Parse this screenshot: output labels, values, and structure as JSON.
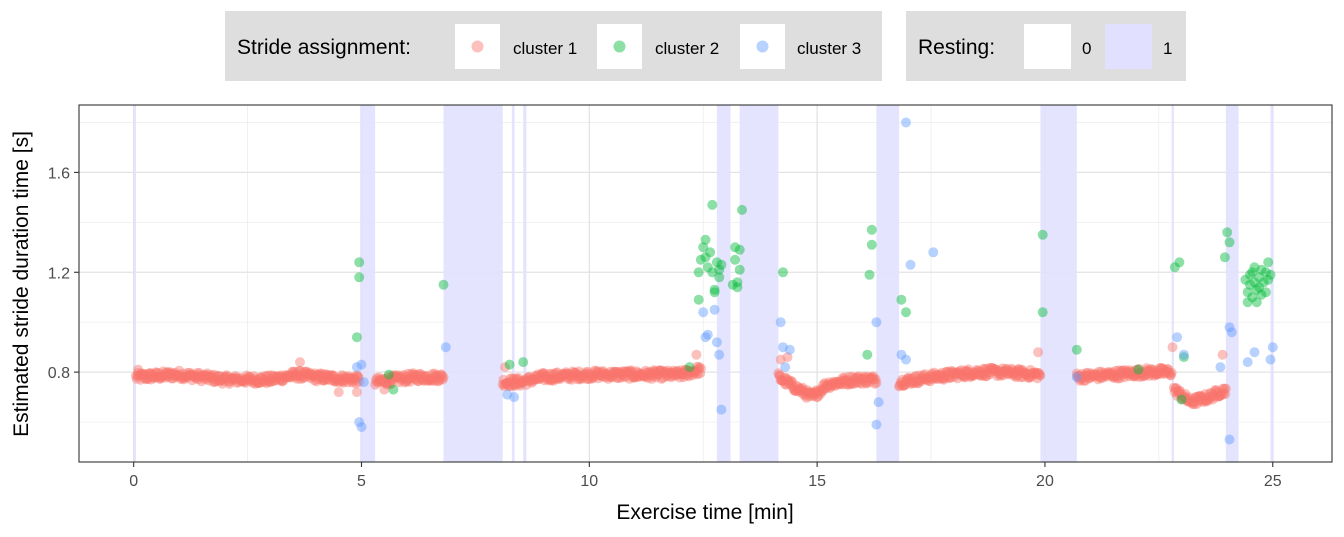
{
  "chart_data": {
    "type": "scatter",
    "xlabel": "Exercise time [min]",
    "ylabel": "Estimated stride duration time [s]",
    "xlim": [
      -1.2,
      26.3
    ],
    "ylim": [
      0.44,
      1.87
    ],
    "x_ticks": [
      0,
      5,
      10,
      15,
      20,
      25
    ],
    "y_ticks": [
      0.8,
      1.2,
      1.6
    ],
    "grid": true,
    "legends": [
      {
        "title": "Stride assignment:",
        "entries": [
          {
            "label": "cluster 1",
            "color": "#f8766d"
          },
          {
            "label": "cluster 2",
            "color": "#00ba38"
          },
          {
            "label": "cluster 3",
            "color": "#619cff"
          }
        ]
      },
      {
        "title": "Resting:",
        "entries": [
          {
            "label": "0",
            "color": "#ffffff"
          },
          {
            "label": "1",
            "color": "#e1e1ff"
          }
        ]
      }
    ],
    "resting_intervals": [
      [
        0.0,
        0.05
      ],
      [
        4.97,
        5.3
      ],
      [
        6.8,
        8.1
      ],
      [
        8.3,
        8.36
      ],
      [
        8.55,
        8.62
      ],
      [
        12.8,
        13.1
      ],
      [
        13.3,
        14.15
      ],
      [
        16.3,
        16.8
      ],
      [
        19.9,
        20.7
      ],
      [
        22.78,
        22.83
      ],
      [
        23.97,
        24.25
      ],
      [
        24.95,
        25.02
      ]
    ],
    "series": [
      {
        "name": "cluster 1",
        "color": "#f8766d",
        "segments": [
          {
            "x0": 0.05,
            "x1": 4.95,
            "base": [
              [
                0.05,
                0.78
              ],
              [
                1.0,
                0.79
              ],
              [
                2.0,
                0.77
              ],
              [
                3.0,
                0.77
              ],
              [
                3.6,
                0.79
              ],
              [
                4.0,
                0.78
              ],
              [
                4.95,
                0.77
              ]
            ]
          },
          {
            "x0": 5.3,
            "x1": 6.8,
            "base": [
              [
                5.3,
                0.76
              ],
              [
                5.7,
                0.77
              ],
              [
                6.2,
                0.78
              ],
              [
                6.8,
                0.78
              ]
            ]
          },
          {
            "x0": 8.1,
            "x1": 12.45,
            "base": [
              [
                8.1,
                0.76
              ],
              [
                8.5,
                0.76
              ],
              [
                9.0,
                0.78
              ],
              [
                10.0,
                0.79
              ],
              [
                11.0,
                0.79
              ],
              [
                12.0,
                0.79
              ],
              [
                12.45,
                0.81
              ]
            ]
          },
          {
            "x0": 14.15,
            "x1": 16.3,
            "base": [
              [
                14.15,
                0.78
              ],
              [
                14.6,
                0.73
              ],
              [
                14.9,
                0.7
              ],
              [
                15.2,
                0.75
              ],
              [
                15.8,
                0.77
              ],
              [
                16.3,
                0.77
              ]
            ]
          },
          {
            "x0": 16.8,
            "x1": 19.9,
            "base": [
              [
                16.8,
                0.76
              ],
              [
                17.5,
                0.78
              ],
              [
                18.5,
                0.8
              ],
              [
                19.0,
                0.8
              ],
              [
                19.9,
                0.79
              ]
            ]
          },
          {
            "x0": 20.7,
            "x1": 22.78,
            "base": [
              [
                20.7,
                0.78
              ],
              [
                21.5,
                0.79
              ],
              [
                22.2,
                0.8
              ],
              [
                22.78,
                0.8
              ]
            ]
          },
          {
            "x0": 22.83,
            "x1": 23.97,
            "base": [
              [
                22.83,
                0.73
              ],
              [
                23.2,
                0.68
              ],
              [
                23.6,
                0.7
              ],
              [
                23.97,
                0.73
              ]
            ]
          }
        ],
        "outliers": [
          [
            0.1,
            0.81
          ],
          [
            3.65,
            0.84
          ],
          [
            4.5,
            0.72
          ],
          [
            4.9,
            0.72
          ],
          [
            5.5,
            0.73
          ],
          [
            8.15,
            0.82
          ],
          [
            12.35,
            0.87
          ],
          [
            14.2,
            0.85
          ],
          [
            14.35,
            0.86
          ],
          [
            19.85,
            0.88
          ],
          [
            22.8,
            0.9
          ],
          [
            23.9,
            0.87
          ]
        ]
      },
      {
        "name": "cluster 2",
        "color": "#00ba38",
        "points": [
          [
            4.9,
            0.94
          ],
          [
            4.95,
            1.24
          ],
          [
            4.95,
            1.18
          ],
          [
            5.6,
            0.79
          ],
          [
            5.7,
            0.73
          ],
          [
            6.8,
            1.15
          ],
          [
            8.25,
            0.83
          ],
          [
            8.55,
            0.84
          ],
          [
            12.2,
            0.82
          ],
          [
            12.4,
            1.09
          ],
          [
            12.45,
            1.25
          ],
          [
            12.5,
            1.3
          ],
          [
            12.55,
            1.33
          ],
          [
            12.6,
            1.22
          ],
          [
            12.65,
            1.28
          ],
          [
            12.7,
            1.47
          ],
          [
            12.7,
            1.2
          ],
          [
            12.75,
            1.12
          ],
          [
            12.75,
            1.13
          ],
          [
            12.8,
            1.24
          ],
          [
            12.85,
            1.18
          ],
          [
            12.85,
            1.21
          ],
          [
            12.9,
            1.23
          ],
          [
            12.4,
            1.2
          ],
          [
            12.55,
            1.26
          ],
          [
            13.15,
            1.15
          ],
          [
            13.2,
            1.3
          ],
          [
            13.2,
            1.25
          ],
          [
            13.25,
            1.16
          ],
          [
            13.25,
            1.14
          ],
          [
            13.3,
            1.21
          ],
          [
            13.3,
            1.29
          ],
          [
            13.35,
            1.45
          ],
          [
            14.25,
            1.2
          ],
          [
            16.1,
            0.87
          ],
          [
            16.15,
            1.19
          ],
          [
            16.2,
            1.37
          ],
          [
            16.2,
            1.31
          ],
          [
            16.85,
            1.09
          ],
          [
            16.95,
            1.04
          ],
          [
            19.95,
            1.35
          ],
          [
            19.95,
            1.04
          ],
          [
            20.7,
            0.89
          ],
          [
            22.05,
            0.81
          ],
          [
            22.85,
            1.22
          ],
          [
            22.95,
            1.24
          ],
          [
            23.0,
            0.69
          ],
          [
            23.05,
            0.86
          ],
          [
            23.95,
            1.26
          ],
          [
            24.0,
            1.36
          ],
          [
            24.05,
            1.32
          ],
          [
            24.4,
            1.17
          ],
          [
            24.45,
            1.12
          ],
          [
            24.45,
            1.08
          ],
          [
            24.5,
            1.19
          ],
          [
            24.5,
            1.15
          ],
          [
            24.55,
            1.2
          ],
          [
            24.55,
            1.1
          ],
          [
            24.6,
            1.22
          ],
          [
            24.6,
            1.16
          ],
          [
            24.65,
            1.13
          ],
          [
            24.65,
            1.08
          ],
          [
            24.7,
            1.18
          ],
          [
            24.7,
            1.14
          ],
          [
            24.75,
            1.21
          ],
          [
            24.75,
            1.11
          ],
          [
            24.8,
            1.16
          ],
          [
            24.85,
            1.2
          ],
          [
            24.85,
            1.12
          ],
          [
            24.9,
            1.24
          ],
          [
            24.9,
            1.17
          ],
          [
            24.95,
            1.19
          ]
        ]
      },
      {
        "name": "cluster 3",
        "color": "#619cff",
        "points": [
          [
            4.9,
            0.82
          ],
          [
            4.95,
            0.6
          ],
          [
            5.0,
            0.58
          ],
          [
            5.0,
            0.83
          ],
          [
            5.05,
            0.76
          ],
          [
            6.85,
            0.9
          ],
          [
            8.2,
            0.71
          ],
          [
            8.35,
            0.7
          ],
          [
            12.5,
            1.04
          ],
          [
            12.55,
            0.94
          ],
          [
            12.6,
            0.95
          ],
          [
            12.75,
            1.05
          ],
          [
            12.8,
            0.92
          ],
          [
            12.85,
            0.87
          ],
          [
            12.9,
            0.65
          ],
          [
            14.2,
            1.0
          ],
          [
            14.25,
            0.9
          ],
          [
            14.3,
            0.82
          ],
          [
            14.4,
            0.89
          ],
          [
            16.3,
            1.0
          ],
          [
            16.35,
            0.68
          ],
          [
            16.3,
            0.59
          ],
          [
            16.85,
            0.87
          ],
          [
            16.95,
            0.85
          ],
          [
            16.95,
            1.8
          ],
          [
            17.05,
            1.23
          ],
          [
            17.55,
            1.28
          ],
          [
            20.7,
            0.78
          ],
          [
            22.9,
            0.94
          ],
          [
            23.05,
            0.87
          ],
          [
            23.85,
            0.82
          ],
          [
            24.05,
            0.98
          ],
          [
            24.1,
            0.96
          ],
          [
            24.05,
            0.53
          ],
          [
            24.45,
            0.84
          ],
          [
            24.6,
            0.88
          ],
          [
            24.95,
            0.85
          ],
          [
            25.0,
            0.9
          ]
        ]
      }
    ]
  }
}
